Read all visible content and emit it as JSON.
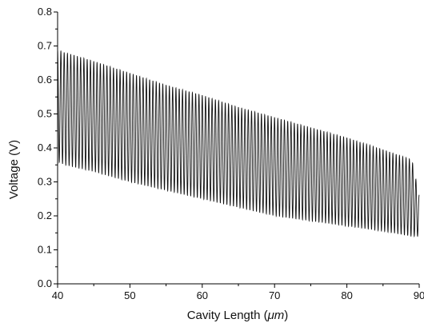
{
  "chart_data": {
    "type": "line",
    "title": "",
    "xlabel_prefix": "Cavity Length (",
    "xlabel_unit": "μm",
    "xlabel_suffix": ")",
    "ylabel": "Voltage (V)",
    "xlim": [
      40,
      90
    ],
    "ylim": [
      0.0,
      0.8
    ],
    "x_ticks": [
      40,
      50,
      60,
      70,
      80,
      90
    ],
    "x_tick_labels": [
      "40",
      "50",
      "60",
      "70",
      "80",
      "90"
    ],
    "y_ticks": [
      0.0,
      0.1,
      0.2,
      0.3,
      0.4,
      0.5,
      0.6,
      0.7,
      0.8
    ],
    "y_tick_labels": [
      "0.0",
      "0.1",
      "0.2",
      "0.3",
      "0.4",
      "0.5",
      "0.6",
      "0.7",
      "0.8"
    ],
    "grid": false,
    "legend": "none",
    "line_color": "#111111",
    "series": [
      {
        "description_of_shape": "dense oscillation between an upper and lower envelope",
        "x": [
          40,
          41,
          42,
          45,
          50,
          55,
          60,
          65,
          70,
          75,
          80,
          85,
          89,
          90
        ],
        "upper_envelope": [
          0.69,
          0.68,
          0.675,
          0.655,
          0.62,
          0.585,
          0.555,
          0.52,
          0.49,
          0.46,
          0.43,
          0.395,
          0.365,
          0.26
        ],
        "lower_envelope": [
          0.36,
          0.35,
          0.345,
          0.33,
          0.3,
          0.275,
          0.25,
          0.225,
          0.2,
          0.185,
          0.17,
          0.155,
          0.14,
          0.14
        ],
        "oscillations_per_um": 2.2
      }
    ]
  }
}
